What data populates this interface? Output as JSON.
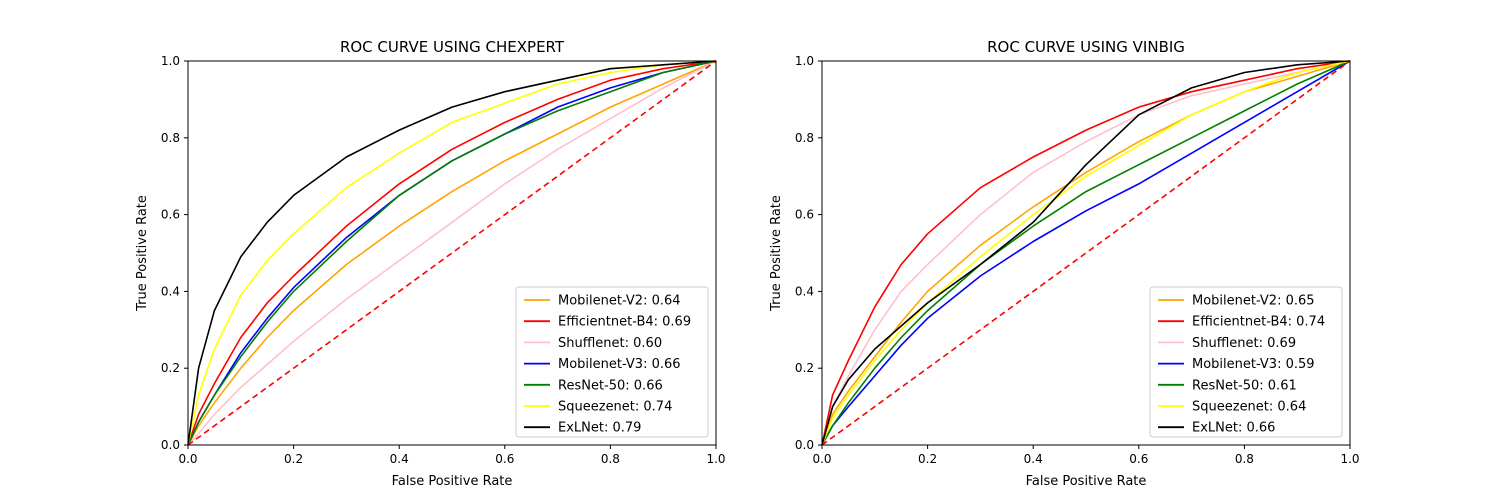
{
  "chart_data": [
    {
      "type": "line",
      "title": "ROC CURVE USING CHEXPERT",
      "xlabel": "False Positive Rate",
      "ylabel": "True Positive Rate",
      "xlim": [
        0,
        1
      ],
      "ylim": [
        0,
        1
      ],
      "xticks": [
        "0.0",
        "0.2",
        "0.4",
        "0.6",
        "0.8",
        "1.0"
      ],
      "yticks": [
        "0.0",
        "0.2",
        "0.4",
        "0.6",
        "0.8",
        "1.0"
      ],
      "grid": false,
      "legend_position": "lower-right",
      "x": [
        0,
        0.02,
        0.05,
        0.1,
        0.15,
        0.2,
        0.3,
        0.4,
        0.5,
        0.6,
        0.7,
        0.8,
        0.9,
        1.0
      ],
      "series": [
        {
          "name": "Mobilenet-V2: 0.64",
          "color": "#ffa500",
          "values": [
            0,
            0.05,
            0.11,
            0.2,
            0.28,
            0.35,
            0.47,
            0.57,
            0.66,
            0.74,
            0.81,
            0.88,
            0.94,
            1.0
          ]
        },
        {
          "name": "Efficientnet-B4: 0.69",
          "color": "#ff0000",
          "values": [
            0,
            0.08,
            0.16,
            0.28,
            0.37,
            0.44,
            0.57,
            0.68,
            0.77,
            0.84,
            0.9,
            0.95,
            0.98,
            1.0
          ]
        },
        {
          "name": "Shufflenet: 0.60",
          "color": "#ffc0cb",
          "values": [
            0,
            0.03,
            0.08,
            0.15,
            0.21,
            0.27,
            0.38,
            0.48,
            0.58,
            0.68,
            0.77,
            0.85,
            0.93,
            1.0
          ]
        },
        {
          "name": "Mobilenet-V3: 0.66",
          "color": "#0000ff",
          "values": [
            0,
            0.06,
            0.13,
            0.24,
            0.33,
            0.41,
            0.54,
            0.65,
            0.74,
            0.81,
            0.88,
            0.93,
            0.97,
            1.0
          ]
        },
        {
          "name": "ResNet-50: 0.66",
          "color": "#008000",
          "values": [
            0,
            0.06,
            0.13,
            0.23,
            0.32,
            0.4,
            0.53,
            0.65,
            0.74,
            0.81,
            0.87,
            0.92,
            0.97,
            1.0
          ]
        },
        {
          "name": "Squeezenet: 0.74",
          "color": "#ffff00",
          "values": [
            0,
            0.13,
            0.25,
            0.39,
            0.48,
            0.55,
            0.67,
            0.76,
            0.84,
            0.89,
            0.94,
            0.97,
            0.99,
            1.0
          ]
        },
        {
          "name": "ExLNet: 0.79",
          "color": "#000000",
          "values": [
            0,
            0.2,
            0.35,
            0.49,
            0.58,
            0.65,
            0.75,
            0.82,
            0.88,
            0.92,
            0.95,
            0.98,
            0.99,
            1.0
          ]
        }
      ],
      "diagonal": {
        "color": "#ff0000",
        "style": "dashed",
        "x": [
          0,
          1
        ],
        "y": [
          0,
          1
        ]
      }
    },
    {
      "type": "line",
      "title": "ROC CURVE USING VINBIG",
      "xlabel": "False Positive Rate",
      "ylabel": "True Positive Rate",
      "xlim": [
        0,
        1
      ],
      "ylim": [
        0,
        1
      ],
      "xticks": [
        "0.0",
        "0.2",
        "0.4",
        "0.6",
        "0.8",
        "1.0"
      ],
      "yticks": [
        "0.0",
        "0.2",
        "0.4",
        "0.6",
        "0.8",
        "1.0"
      ],
      "grid": false,
      "legend_position": "lower-right",
      "x": [
        0,
        0.02,
        0.05,
        0.1,
        0.15,
        0.2,
        0.3,
        0.4,
        0.5,
        0.6,
        0.7,
        0.8,
        0.9,
        1.0
      ],
      "series": [
        {
          "name": "Mobilenet-V2: 0.65",
          "color": "#ffa500",
          "values": [
            0,
            0.08,
            0.14,
            0.23,
            0.32,
            0.4,
            0.52,
            0.62,
            0.71,
            0.79,
            0.86,
            0.92,
            0.96,
            1.0
          ]
        },
        {
          "name": "Efficientnet-B4: 0.74",
          "color": "#ff0000",
          "values": [
            0,
            0.13,
            0.22,
            0.36,
            0.47,
            0.55,
            0.67,
            0.75,
            0.82,
            0.88,
            0.92,
            0.95,
            0.98,
            1.0
          ]
        },
        {
          "name": "Shufflenet: 0.69",
          "color": "#ffc0cb",
          "values": [
            0,
            0.1,
            0.18,
            0.3,
            0.4,
            0.47,
            0.6,
            0.71,
            0.79,
            0.86,
            0.91,
            0.94,
            0.97,
            1.0
          ]
        },
        {
          "name": "Mobilenet-V3: 0.59",
          "color": "#0000ff",
          "values": [
            0,
            0.05,
            0.1,
            0.18,
            0.26,
            0.33,
            0.44,
            0.53,
            0.61,
            0.68,
            0.76,
            0.84,
            0.92,
            1.0
          ]
        },
        {
          "name": "ResNet-50: 0.61",
          "color": "#008000",
          "values": [
            0,
            0.05,
            0.11,
            0.2,
            0.28,
            0.35,
            0.47,
            0.57,
            0.66,
            0.73,
            0.8,
            0.87,
            0.94,
            1.0
          ]
        },
        {
          "name": "Squeezenet: 0.64",
          "color": "#ffff00",
          "values": [
            0,
            0.07,
            0.13,
            0.22,
            0.3,
            0.37,
            0.49,
            0.6,
            0.7,
            0.78,
            0.86,
            0.92,
            0.97,
            1.0
          ]
        },
        {
          "name": "ExLNet: 0.66",
          "color": "#000000",
          "values": [
            0,
            0.1,
            0.17,
            0.25,
            0.31,
            0.37,
            0.47,
            0.58,
            0.73,
            0.86,
            0.93,
            0.97,
            0.99,
            1.0
          ]
        }
      ],
      "diagonal": {
        "color": "#ff0000",
        "style": "dashed",
        "x": [
          0,
          1
        ],
        "y": [
          0,
          1
        ]
      }
    }
  ]
}
